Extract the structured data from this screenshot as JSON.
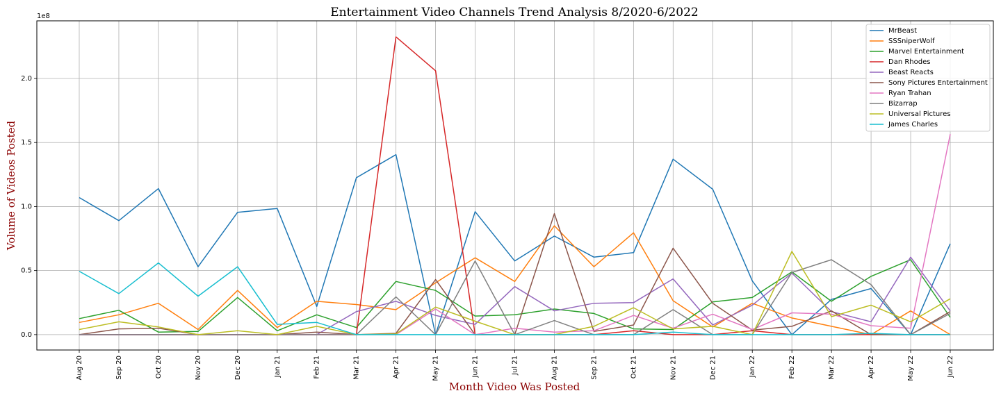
{
  "chart_data": {
    "type": "line",
    "title": "Entertainment Video Channels Trend Analysis 8/2020-6/2022",
    "xlabel": "Month Video Was Posted",
    "ylabel": "Volume of Videos Posted",
    "y_multiplier_label": "1e8",
    "y_scale": 100000000,
    "ylim": [
      -0.12,
      2.45
    ],
    "yticks": [
      0.0,
      0.5,
      1.0,
      1.5,
      2.0
    ],
    "ytick_labels": [
      "0.0",
      "0.5",
      "1.0",
      "1.5",
      "2.0"
    ],
    "grid": true,
    "legend_position": "top-right",
    "categories": [
      "Aug 20",
      "Sep 20",
      "Oct 20",
      "Nov 20",
      "Dec 20",
      "Jan 21",
      "Feb 21",
      "Mar 21",
      "Apr 21",
      "May 21",
      "Jun 21",
      "Jul 21",
      "Aug 21",
      "Sep 21",
      "Oct 21",
      "Nov 21",
      "Dec 21",
      "Jan 22",
      "Feb 22",
      "Mar 22",
      "Apr 22",
      "May 22",
      "Jun 22"
    ],
    "series": [
      {
        "name": "MrBeast",
        "color": "#1f77b4",
        "values": [
          1.07,
          0.89,
          1.14,
          0.53,
          0.955,
          0.985,
          0.22,
          1.225,
          1.405,
          0.0,
          0.96,
          0.575,
          0.77,
          0.605,
          0.64,
          1.37,
          1.135,
          0.42,
          0.0,
          0.275,
          0.36,
          0.0,
          0.71
        ]
      },
      {
        "name": "SSSniperWolf",
        "color": "#ff7f0e",
        "values": [
          0.095,
          0.155,
          0.245,
          0.04,
          0.345,
          0.055,
          0.26,
          0.235,
          0.195,
          0.405,
          0.6,
          0.415,
          0.85,
          0.53,
          0.795,
          0.265,
          0.06,
          0.245,
          0.13,
          0.065,
          0.0,
          0.185,
          0.0
        ]
      },
      {
        "name": "Marvel Entertainment",
        "color": "#2ca02c",
        "values": [
          0.125,
          0.19,
          0.02,
          0.025,
          0.29,
          0.03,
          0.155,
          0.055,
          0.415,
          0.345,
          0.145,
          0.155,
          0.2,
          0.165,
          0.045,
          0.04,
          0.255,
          0.29,
          0.49,
          0.26,
          0.455,
          0.585,
          0.135
        ]
      },
      {
        "name": "Dan Rhodes",
        "color": "#d62728",
        "values": [
          0,
          0,
          0,
          0,
          0,
          0,
          0,
          0,
          2.325,
          2.06,
          0,
          0,
          0,
          0,
          0.03,
          0,
          0,
          0.03,
          0,
          0,
          0,
          0,
          0
        ]
      },
      {
        "name": "Beast Reacts",
        "color": "#9467bd",
        "values": [
          0,
          0,
          0,
          0,
          0,
          0,
          0,
          0.18,
          0.26,
          0.15,
          0.08,
          0.375,
          0.185,
          0.245,
          0.25,
          0.435,
          0.075,
          0.23,
          0.48,
          0.18,
          0.1,
          0.605,
          0.185
        ]
      },
      {
        "name": "Sony Pictures Entertainment",
        "color": "#8c564b",
        "values": [
          0.0,
          0.045,
          0.05,
          0.0,
          0.0,
          0.0,
          0.02,
          0.0,
          0.01,
          0.43,
          0.0,
          0.0,
          0.945,
          0.025,
          0.075,
          0.675,
          0.245,
          0.035,
          0.065,
          0.185,
          0.0,
          0.0,
          0.18
        ]
      },
      {
        "name": "Ryan Trahan",
        "color": "#e377c2",
        "values": [
          0,
          0,
          0,
          0,
          0,
          0,
          0,
          0,
          0,
          0.2,
          0,
          0.05,
          0.02,
          0.03,
          0.15,
          0.05,
          0.16,
          0.04,
          0.17,
          0.16,
          0.07,
          0.05,
          1.565
        ]
      },
      {
        "name": "Bizarrap",
        "color": "#7f7f7f",
        "values": [
          0,
          0,
          0,
          0,
          0,
          0,
          0,
          0,
          0.295,
          0,
          0.575,
          0,
          0.11,
          0,
          0,
          0.195,
          0,
          0,
          0.485,
          0.585,
          0.39,
          0,
          0.165
        ]
      },
      {
        "name": "Universal Pictures",
        "color": "#bcbd22",
        "values": [
          0.04,
          0.1,
          0.06,
          0.0,
          0.03,
          0.0,
          0.065,
          0.0,
          0.005,
          0.215,
          0.105,
          0.0,
          0.0,
          0.065,
          0.21,
          0.045,
          0.065,
          0.0,
          0.65,
          0.14,
          0.23,
          0.1,
          0.28
        ]
      },
      {
        "name": "James Charles",
        "color": "#17becf",
        "values": [
          0.495,
          0.32,
          0.56,
          0.3,
          0.53,
          0.08,
          0.095,
          0.0,
          0.0,
          0.0,
          0.0,
          0.0,
          0.0,
          0.0,
          0.0,
          0.02,
          0.0,
          0.0,
          0.0,
          0.0,
          0.01,
          0.0,
          0.0
        ]
      }
    ]
  }
}
